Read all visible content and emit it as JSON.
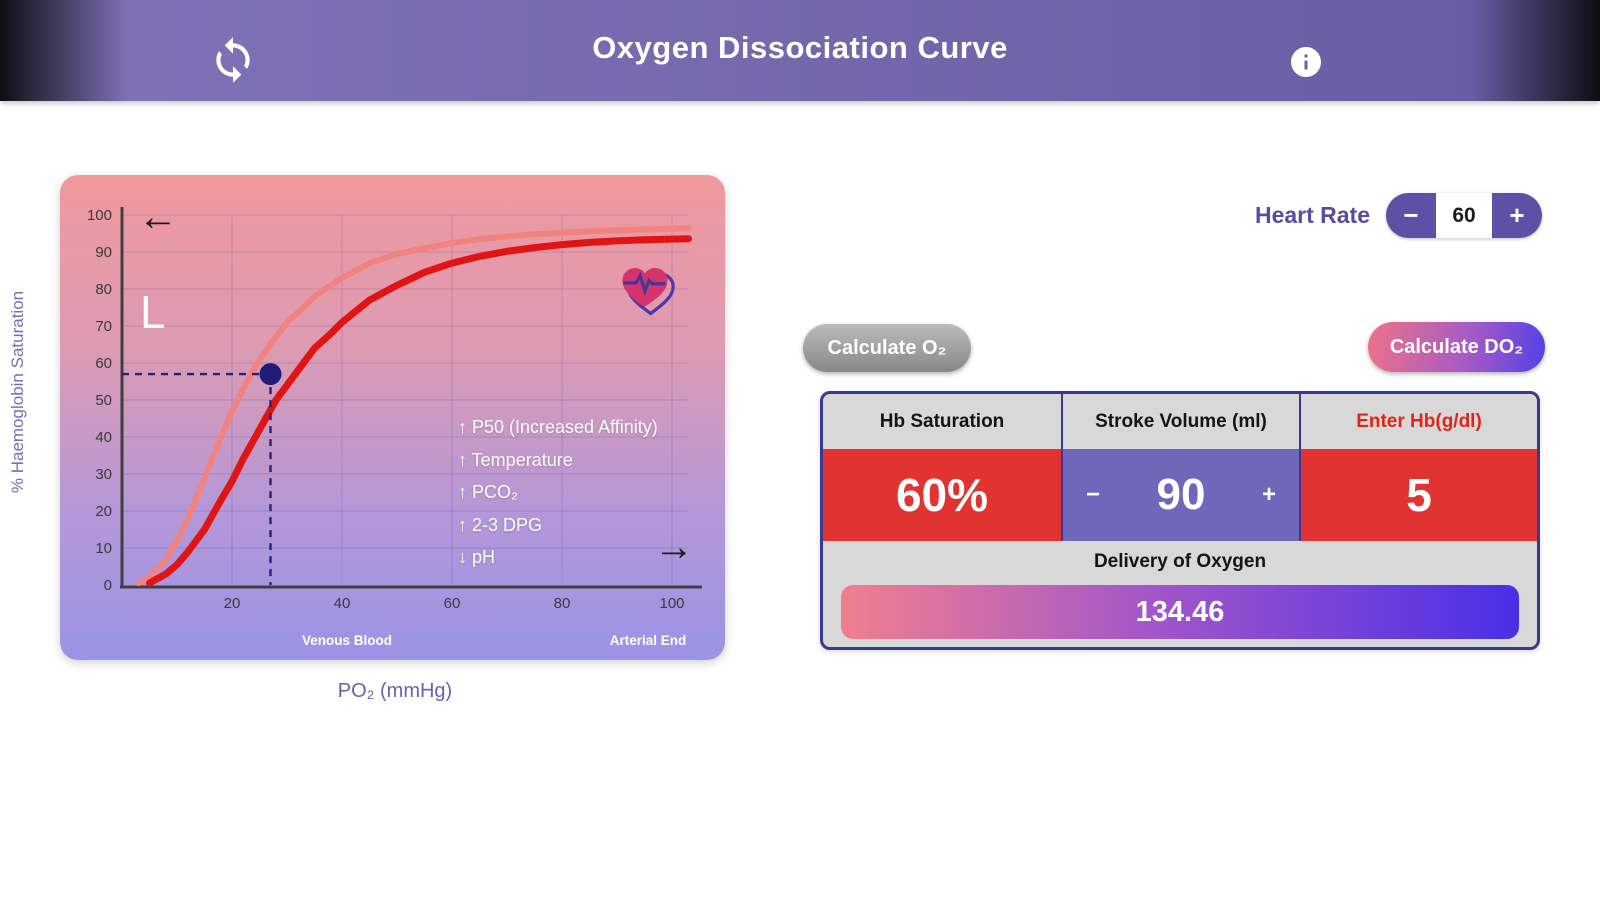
{
  "header": {
    "title": "Oxygen Dissociation Curve"
  },
  "heart_rate": {
    "label": "Heart Rate",
    "minus": "−",
    "value": "60",
    "plus": "+"
  },
  "buttons": {
    "calc_o2": "Calculate O₂",
    "calc_do2": "Calculate DO₂"
  },
  "table": {
    "headers": [
      "Hb Saturation",
      "Stroke Volume (ml)",
      "Enter Hb(g/dl)"
    ],
    "hb_saturation": "60%",
    "stroke_minus": "−",
    "stroke_volume": "90",
    "stroke_plus": "+",
    "hb_value": "5",
    "delivery_label": "Delivery of Oxygen",
    "delivery_value": "134.46"
  },
  "chart": {
    "shift_label": "L",
    "ylabel": "% Haemoglobin Saturation",
    "xlabel": "PO₂ (mmHg)",
    "venous_label": "Venous Blood",
    "arterial_label": "Arterial End",
    "annotations": [
      "↑ P50 (Increased Affinity)",
      "↑ Temperature",
      "↑ PCO₂",
      "↑ 2-3 DPG",
      "↓ pH"
    ]
  },
  "chart_data": {
    "type": "line",
    "title": "Oxygen Dissociation Curve",
    "xlabel": "PO₂ (mmHg)",
    "ylabel": "% Haemoglobin Saturation",
    "xlim": [
      0,
      104
    ],
    "ylim": [
      0,
      100
    ],
    "x_ticks": [
      20,
      40,
      60,
      80,
      100
    ],
    "y_ticks": [
      100,
      90,
      80,
      70,
      60,
      50,
      40,
      30,
      20,
      10,
      0
    ],
    "grid": true,
    "legend": "none",
    "series": [
      {
        "name": "left-shifted-curve",
        "color": "#f0837f",
        "points": [
          [
            3,
            0.5
          ],
          [
            5,
            2
          ],
          [
            8,
            7
          ],
          [
            10,
            12
          ],
          [
            12,
            18
          ],
          [
            15,
            29
          ],
          [
            18,
            40
          ],
          [
            20,
            47
          ],
          [
            22,
            53
          ],
          [
            25,
            61
          ],
          [
            28,
            67
          ],
          [
            30,
            71
          ],
          [
            33,
            75
          ],
          [
            35,
            78
          ],
          [
            38,
            81
          ],
          [
            40,
            83
          ],
          [
            45,
            87
          ],
          [
            50,
            89.5
          ],
          [
            55,
            91
          ],
          [
            60,
            92.5
          ],
          [
            65,
            93.5
          ],
          [
            70,
            94.2
          ],
          [
            75,
            94.8
          ],
          [
            80,
            95.2
          ],
          [
            85,
            95.6
          ],
          [
            90,
            95.9
          ],
          [
            95,
            96.1
          ],
          [
            100,
            96.3
          ],
          [
            103,
            96.4
          ]
        ]
      },
      {
        "name": "standard-curve",
        "color": "#e11414",
        "points": [
          [
            5,
            0.5
          ],
          [
            8,
            3
          ],
          [
            10,
            5.5
          ],
          [
            12,
            9
          ],
          [
            15,
            15
          ],
          [
            18,
            23
          ],
          [
            20,
            28
          ],
          [
            22,
            34
          ],
          [
            25,
            42
          ],
          [
            28,
            50
          ],
          [
            30,
            54
          ],
          [
            33,
            60
          ],
          [
            35,
            64
          ],
          [
            38,
            68
          ],
          [
            40,
            71
          ],
          [
            45,
            77
          ],
          [
            50,
            81
          ],
          [
            55,
            84.5
          ],
          [
            60,
            87
          ],
          [
            65,
            88.8
          ],
          [
            70,
            90.2
          ],
          [
            75,
            91.2
          ],
          [
            80,
            92
          ],
          [
            85,
            92.6
          ],
          [
            90,
            93
          ],
          [
            95,
            93.3
          ],
          [
            100,
            93.5
          ],
          [
            103,
            93.6
          ]
        ]
      }
    ],
    "marker": {
      "x": 27,
      "y": 57
    }
  }
}
